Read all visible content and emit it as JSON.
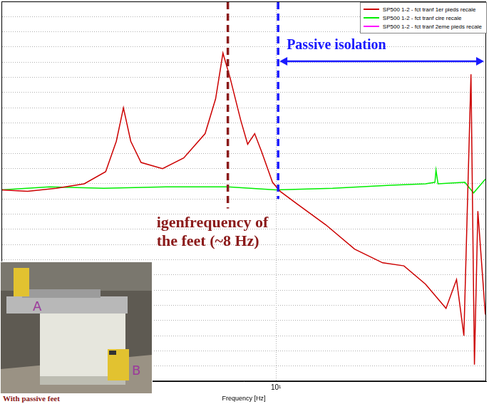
{
  "chart_data": {
    "type": "line",
    "x_label": "Frequency [Hz]",
    "log": "x",
    "grid": true,
    "legend": "top-right",
    "tick_labels": "x",
    "xlim": [
      2.8,
      26.5
    ],
    "xticks": [
      {
        "value": 10,
        "label": "10¹"
      }
    ],
    "ylim": [
      0,
      25
    ],
    "yticks": [
      0,
      1,
      2,
      3,
      4,
      5,
      6,
      7,
      8,
      9,
      10,
      11,
      12,
      13,
      14,
      15,
      16,
      17,
      18,
      19,
      20,
      21,
      22,
      23,
      24,
      25
    ],
    "series": [
      {
        "name": "SP500 1-2 - fct tranf 1er pieds recale",
        "color": "#cc0000",
        "x": [
          2.8,
          3.16,
          3.61,
          4.11,
          4.54,
          4.77,
          4.93,
          5.1,
          5.35,
          5.91,
          6.52,
          7.2,
          7.56,
          7.82,
          8.08,
          8.49,
          8.77,
          9.06,
          9.36,
          9.84,
          10.2,
          11.0,
          12.6,
          14.4,
          16.4,
          18.1,
          20.0,
          22.0,
          23.1,
          23.9,
          24.7,
          25.1,
          25.5,
          26.4
        ],
        "values": [
          12.6,
          12.5,
          12.7,
          13.0,
          13.8,
          15.8,
          18.0,
          15.8,
          14.4,
          14.0,
          14.7,
          16.3,
          18.6,
          21.6,
          20.0,
          17.2,
          15.6,
          16.3,
          15.1,
          13.1,
          12.5,
          11.7,
          10.3,
          8.7,
          7.8,
          7.6,
          6.4,
          4.8,
          6.7,
          3.0,
          20.2,
          1.1,
          11.2,
          4.4
        ]
      },
      {
        "name": "SP500 1-2 - fct tranf cire recale",
        "color": "#00ee00",
        "x": [
          2.8,
          3.5,
          4.5,
          6.0,
          8.0,
          10.0,
          13.0,
          17.0,
          20.0,
          20.9,
          21.0,
          21.2,
          24.0,
          25.0,
          26.4
        ],
        "values": [
          12.6,
          12.8,
          12.7,
          12.8,
          12.8,
          12.6,
          12.7,
          12.9,
          13.0,
          13.1,
          13.9,
          13.0,
          13.1,
          12.4,
          13.3
        ]
      },
      {
        "name": "SP500 1-2 - fct tranf 2eme pieds recale",
        "color": "#ff00ff",
        "x": [],
        "values": []
      }
    ],
    "annotations": [
      {
        "x": 8.0,
        "text": "igenfrequency of\nthe feet (~8 Hz)",
        "color": "#8b1a1a",
        "line_style": "dashed"
      },
      {
        "x": 10.1,
        "text": "Passive isolation",
        "color": "#1a1aff",
        "line_style": "dashed",
        "arrow": true
      }
    ],
    "inset": {
      "labels": [
        "A",
        "B"
      ],
      "caption": "With passive feet"
    }
  }
}
